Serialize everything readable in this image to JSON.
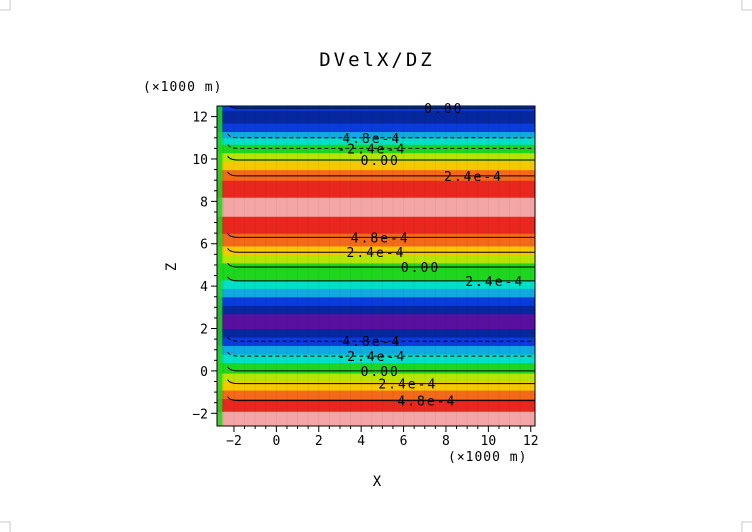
{
  "chart_data": {
    "type": "heatmap",
    "title": "DVelX/DZ",
    "xlabel": "X",
    "ylabel": "Z",
    "x_unit": "(×1000 m)",
    "y_unit": "(×1000 m)",
    "xlim": [
      -2.8,
      12.2
    ],
    "ylim": [
      -2.6,
      12.5
    ],
    "x_ticks": [
      -2,
      0,
      2,
      4,
      6,
      8,
      10,
      12
    ],
    "y_ticks": [
      -2,
      0,
      2,
      4,
      6,
      8,
      10,
      12
    ],
    "x_tick_labels": [
      "−2",
      "0",
      "2",
      "4",
      "6",
      "8",
      "10",
      "12"
    ],
    "y_tick_labels": [
      "−2",
      "0",
      "2",
      "4",
      "6",
      "8",
      "10",
      "12"
    ],
    "grid": false,
    "legend": "none",
    "color_bands": [
      {
        "z": [
          -2.6,
          -1.9
        ],
        "color": "#f4a6a6"
      },
      {
        "z": [
          -1.9,
          -1.3
        ],
        "color": "#e8281e"
      },
      {
        "z": [
          -1.3,
          -0.9
        ],
        "color": "#f26a1a"
      },
      {
        "z": [
          -0.9,
          -0.5
        ],
        "color": "#f5c800"
      },
      {
        "z": [
          -0.5,
          -0.1
        ],
        "color": "#b7e400"
      },
      {
        "z": [
          -0.1,
          0.4
        ],
        "color": "#1ed61e"
      },
      {
        "z": [
          0.4,
          0.8
        ],
        "color": "#00e0c8"
      },
      {
        "z": [
          0.8,
          1.2
        ],
        "color": "#12a8e0"
      },
      {
        "z": [
          1.2,
          1.6
        ],
        "color": "#0a3cdc"
      },
      {
        "z": [
          1.6,
          2.0
        ],
        "color": "#07279e"
      },
      {
        "z": [
          2.0,
          2.7
        ],
        "color": "#5a109e"
      },
      {
        "z": [
          2.7,
          3.1
        ],
        "color": "#07279e"
      },
      {
        "z": [
          3.1,
          3.5
        ],
        "color": "#0a3cdc"
      },
      {
        "z": [
          3.5,
          3.9
        ],
        "color": "#12a8e0"
      },
      {
        "z": [
          3.9,
          4.3
        ],
        "color": "#00e0c8"
      },
      {
        "z": [
          4.3,
          5.1
        ],
        "color": "#1ed61e"
      },
      {
        "z": [
          5.1,
          5.5
        ],
        "color": "#b7e400"
      },
      {
        "z": [
          5.5,
          5.9
        ],
        "color": "#f5c800"
      },
      {
        "z": [
          5.9,
          6.5
        ],
        "color": "#f26a1a"
      },
      {
        "z": [
          6.5,
          7.3
        ],
        "color": "#e8281e"
      },
      {
        "z": [
          7.3,
          8.2
        ],
        "color": "#f4a6a6"
      },
      {
        "z": [
          8.2,
          9.0
        ],
        "color": "#e8281e"
      },
      {
        "z": [
          9.0,
          9.5
        ],
        "color": "#f26a1a"
      },
      {
        "z": [
          9.5,
          9.9
        ],
        "color": "#f5c800"
      },
      {
        "z": [
          9.9,
          10.3
        ],
        "color": "#b7e400"
      },
      {
        "z": [
          10.3,
          10.7
        ],
        "color": "#1ed61e"
      },
      {
        "z": [
          10.7,
          11.0
        ],
        "color": "#00e0c8"
      },
      {
        "z": [
          11.0,
          11.3
        ],
        "color": "#12a8e0"
      },
      {
        "z": [
          11.3,
          11.7
        ],
        "color": "#0a3cdc"
      },
      {
        "z": [
          11.7,
          12.3
        ],
        "color": "#07279e"
      },
      {
        "z": [
          12.3,
          12.5
        ],
        "color": "#0a3cdc"
      }
    ],
    "contours": [
      {
        "z": 12.4,
        "style": "solid",
        "label": "0.00",
        "label_x": 7.9
      },
      {
        "z": 11.0,
        "style": "dashed",
        "label": "4.8e-4",
        "label_x": 4.5
      },
      {
        "z": 10.5,
        "style": "dashed",
        "label": "-2.4e-4",
        "label_x": 4.5
      },
      {
        "z": 9.95,
        "style": "solid",
        "label": "0.00",
        "label_x": 4.9
      },
      {
        "z": 9.2,
        "style": "solid",
        "label": "2.4e-4",
        "label_x": 9.3
      },
      {
        "z": 6.3,
        "style": "solid",
        "label": "4.8e-4",
        "label_x": 4.9
      },
      {
        "z": 5.6,
        "style": "solid",
        "label": "2.4e-4",
        "label_x": 4.7
      },
      {
        "z": 4.9,
        "style": "solid",
        "label": "0.00",
        "label_x": 6.8
      },
      {
        "z": 4.25,
        "style": "solid",
        "label": "2.4e-4",
        "label_x": 10.3
      },
      {
        "z": 1.4,
        "style": "dashed",
        "label": "4.8e-4",
        "label_x": 4.5
      },
      {
        "z": 0.7,
        "style": "dashed",
        "label": "-2.4e-4",
        "label_x": 4.5
      },
      {
        "z": 0.0,
        "style": "solid",
        "label": "0.00",
        "label_x": 4.9
      },
      {
        "z": -0.6,
        "style": "solid",
        "label": "2.4e-4",
        "label_x": 6.2
      },
      {
        "z": -1.4,
        "style": "solid",
        "label": "4.8e-4",
        "label_x": 7.1
      }
    ]
  }
}
